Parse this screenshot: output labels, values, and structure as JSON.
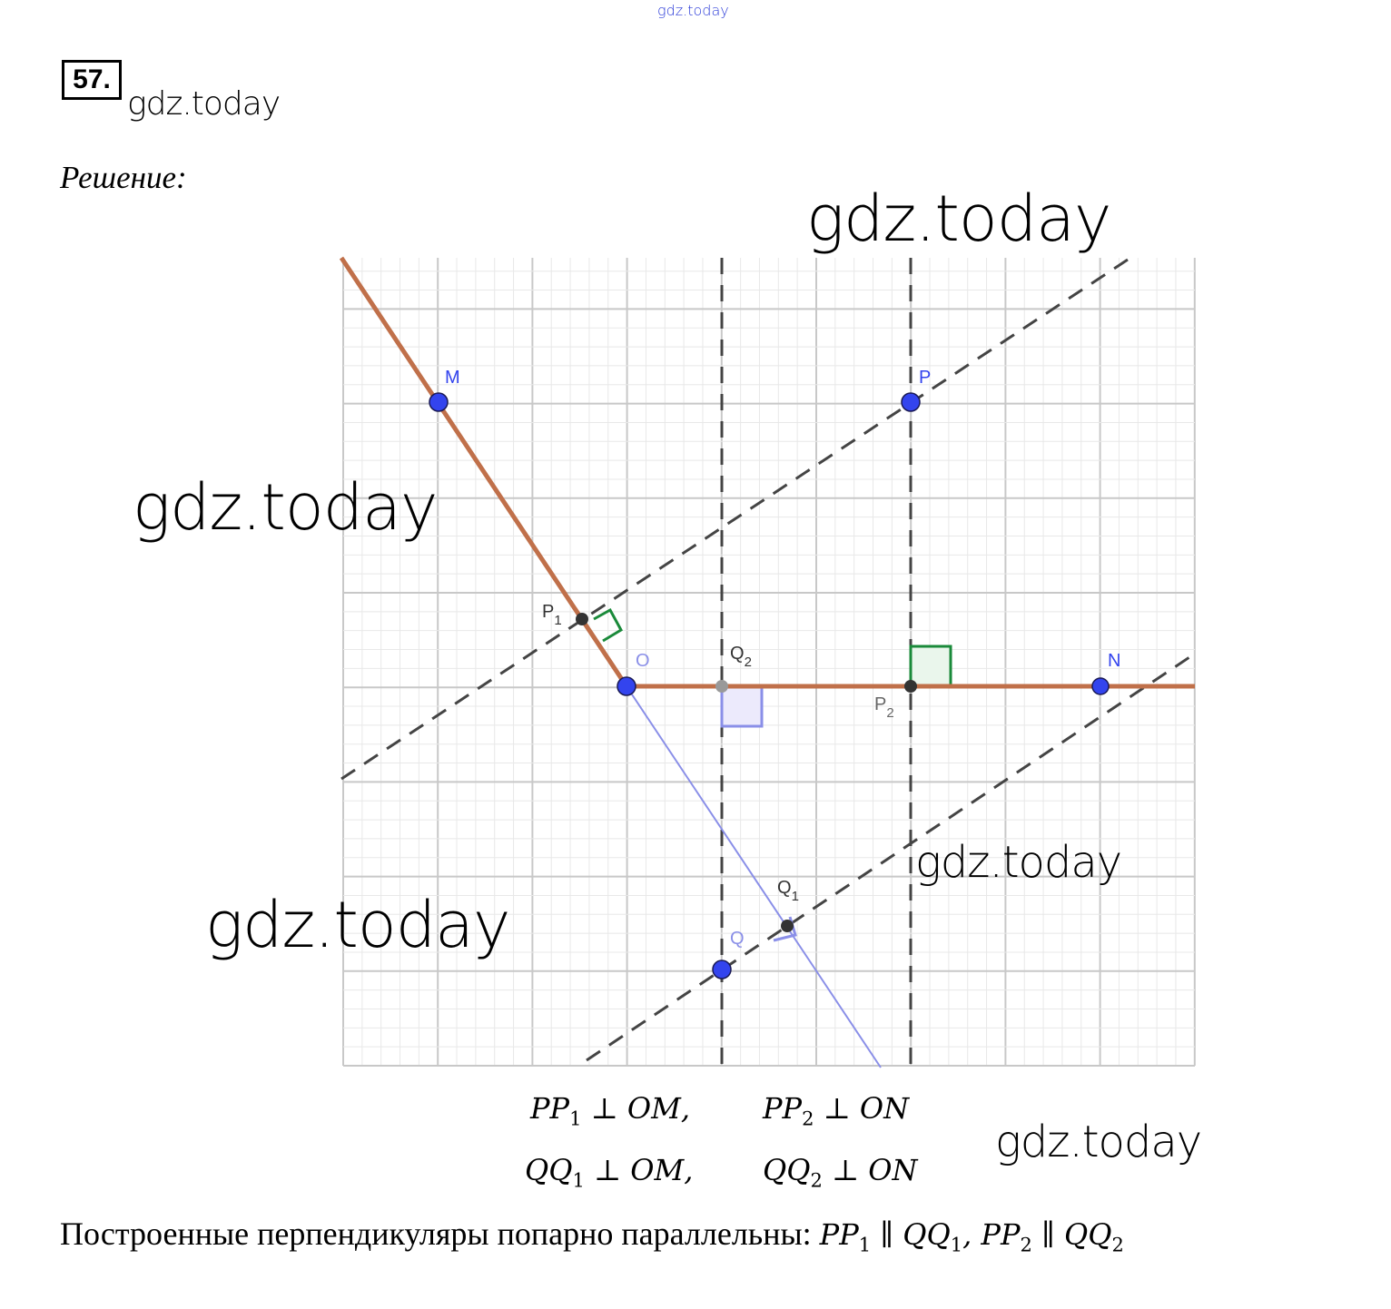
{
  "watermarks": {
    "top": "gdz.today",
    "number": "gdz.today",
    "big1": "gdz.today",
    "big2": "gdz.today",
    "big3": "gdz.today",
    "mid": "gdz.today",
    "bottom": "gdz.today"
  },
  "problem_number": "57.",
  "solution_label": "Решение:",
  "points": {
    "M": "M",
    "P": "P",
    "O": "O",
    "N": "N",
    "Q": "Q",
    "P1_base": "P",
    "P1_sub": "1",
    "P2_base": "P",
    "P2_sub": "2",
    "Q1_base": "Q",
    "Q1_sub": "1",
    "Q2_base": "Q",
    "Q2_sub": "2"
  },
  "relations": {
    "pp1": {
      "a": "PP",
      "sub": "1",
      "rest": " ⊥ OM,"
    },
    "pp2": {
      "a": "PP",
      "sub": "2",
      "rest": " ⊥ ON"
    },
    "qq1": {
      "a": "QQ",
      "sub": "1",
      "rest": " ⊥ OM,"
    },
    "qq2": {
      "a": "QQ",
      "sub": "2",
      "rest": " ⊥ ON"
    }
  },
  "conclusion": {
    "text": "Построенные перпендикуляры попарно параллельны: ",
    "p1": "PP",
    "s1": "1",
    "par1": " ∥ ",
    "q1": "QQ",
    "s2": "1",
    "comma": ", ",
    "p2": "PP",
    "s3": "2",
    "par2": " ∥ ",
    "q2": "QQ",
    "s4": "2"
  },
  "colors": {
    "ray": "#c0704a",
    "point": "#3344ee",
    "aux_point": "#333333",
    "blue_line": "#8a8fe8",
    "green_mark": "#1a8a3a",
    "grid_major": "#c8c8c8",
    "grid_minor": "#e8e8e8"
  }
}
